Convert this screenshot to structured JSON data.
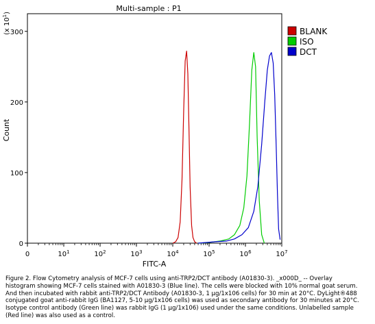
{
  "chart_data": {
    "type": "line",
    "title": "Multi-sample : P1",
    "xlabel": "FITC-A",
    "ylabel": "Count",
    "y_scale_label": "(x 10",
    "y_scale_exp": "1",
    "x_scale": "log",
    "xlim": [
      0,
      10000000
    ],
    "ylim": [
      0,
      325
    ],
    "yticks": [
      0,
      100,
      200,
      300
    ],
    "xticks": [
      {
        "value": 0,
        "base": "0",
        "exp": ""
      },
      {
        "value": 10,
        "base": "10",
        "exp": "1"
      },
      {
        "value": 100,
        "base": "10",
        "exp": "2"
      },
      {
        "value": 1000,
        "base": "10",
        "exp": "3"
      },
      {
        "value": 10000,
        "base": "10",
        "exp": "4"
      },
      {
        "value": 100000,
        "base": "10",
        "exp": "5"
      },
      {
        "value": 1000000,
        "base": "10",
        "exp": "6"
      },
      {
        "value": 10000000,
        "base": "10",
        "exp": "7"
      }
    ],
    "legend_position": "right",
    "grid": false,
    "series": [
      {
        "name": "BLANK",
        "color": "#cc0000",
        "x": [
          10000,
          12000,
          14000,
          16000,
          18000,
          20000,
          22000,
          24000,
          26000,
          28000,
          30000,
          33000,
          36000,
          40000,
          45000
        ],
        "y": [
          0,
          2,
          8,
          30,
          90,
          190,
          258,
          272,
          240,
          160,
          80,
          25,
          8,
          2,
          0
        ]
      },
      {
        "name": "ISO",
        "color": "#00cc00",
        "x": [
          50000,
          100000,
          200000,
          350000,
          500000,
          700000,
          900000,
          1100000,
          1300000,
          1500000,
          1700000,
          1900000,
          2100000,
          2400000,
          2800000,
          3300000
        ],
        "y": [
          0,
          1,
          3,
          6,
          12,
          25,
          50,
          95,
          170,
          245,
          270,
          250,
          150,
          60,
          12,
          0
        ]
      },
      {
        "name": "DCT",
        "color": "#0000cc",
        "x": [
          50000,
          150000,
          300000,
          500000,
          800000,
          1200000,
          1700000,
          2200000,
          2800000,
          3400000,
          4000000,
          4600000,
          5200000,
          5800000,
          6400000,
          7000000,
          7600000,
          8200000,
          9000000
        ],
        "y": [
          0,
          2,
          3,
          6,
          12,
          22,
          45,
          80,
          140,
          200,
          245,
          265,
          270,
          255,
          210,
          140,
          70,
          20,
          5
        ]
      }
    ]
  },
  "caption": "Figure 2. Flow Cytometry analysis of MCF-7 cells using anti-TRP2/DCT antibody (A01830-3). _x000D_ -- Overlay histogram showing MCF-7 cells stained with A01830-3 (Blue line). The cells were blocked with 10% normal goat serum. And then incubated with rabbit anti-TRP2/DCT Antibody (A01830-3, 1 μg/1x106 cells) for 30 min at 20°C. DyLight®488 conjugated goat anti-rabbit IgG (BA1127, 5-10 μg/1x106 cells) was used as secondary antibody for 30 minutes at 20°C. Isotype control antibody (Green line) was rabbit IgG (1 μg/1x106) used under the same conditions. Unlabelled sample (Red line) was also used as a control."
}
